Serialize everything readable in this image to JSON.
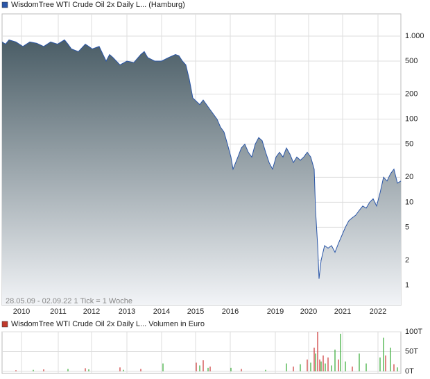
{
  "chart_data": [
    {
      "type": "area",
      "title": "WisdomTree WTI Crude Oil 2x Daily L... (Hamburg)",
      "annotation": "28.05.09 - 02.09.22   1 Tick = 1 Woche",
      "color": "#2a56a8",
      "log_scale": true,
      "grid": true,
      "xlim": [
        0,
        575
      ],
      "xticks": [
        {
          "value": 28,
          "label": "2010"
        },
        {
          "value": 81,
          "label": "2011"
        },
        {
          "value": 129,
          "label": "2012"
        },
        {
          "value": 180,
          "label": "2013"
        },
        {
          "value": 230,
          "label": "2014"
        },
        {
          "value": 279,
          "label": "2015"
        },
        {
          "value": 329,
          "label": "2016"
        },
        {
          "value": 394,
          "label": "2019"
        },
        {
          "value": 442,
          "label": "2020"
        },
        {
          "value": 491,
          "label": "2021"
        },
        {
          "value": 542,
          "label": "2022"
        }
      ],
      "ylim": [
        0.573,
        1849
      ],
      "yticks": [
        1,
        2,
        5,
        10,
        20,
        50,
        100,
        200,
        500,
        {
          "value": 1000,
          "label": "1.000"
        }
      ],
      "x": [
        0,
        5,
        10,
        20,
        30,
        40,
        50,
        60,
        70,
        80,
        90,
        95,
        100,
        110,
        120,
        125,
        130,
        140,
        150,
        155,
        160,
        170,
        180,
        190,
        200,
        205,
        210,
        220,
        230,
        240,
        250,
        255,
        260,
        265,
        270,
        275,
        285,
        290,
        300,
        310,
        315,
        320,
        325,
        330,
        333,
        340,
        345,
        350,
        355,
        360,
        365,
        370,
        375,
        380,
        385,
        390,
        395,
        400,
        405,
        410,
        415,
        420,
        425,
        430,
        435,
        440,
        445,
        450,
        452,
        455,
        457,
        460,
        465,
        470,
        475,
        480,
        485,
        490,
        495,
        500,
        505,
        510,
        515,
        520,
        525,
        530,
        535,
        540,
        545,
        550,
        555,
        560,
        565,
        570,
        575
      ],
      "values": [
        850,
        800,
        900,
        850,
        750,
        850,
        820,
        750,
        850,
        800,
        900,
        800,
        700,
        650,
        800,
        750,
        700,
        750,
        500,
        600,
        550,
        450,
        500,
        480,
        600,
        650,
        550,
        500,
        500,
        550,
        600,
        580,
        500,
        450,
        300,
        180,
        150,
        170,
        130,
        100,
        80,
        70,
        50,
        35,
        25,
        35,
        45,
        50,
        40,
        35,
        50,
        60,
        55,
        40,
        30,
        25,
        35,
        40,
        35,
        45,
        38,
        30,
        35,
        32,
        35,
        40,
        35,
        25,
        8,
        3,
        1.2,
        2,
        3,
        2.8,
        3,
        2.5,
        3.2,
        4,
        5,
        6,
        6.5,
        7,
        8,
        9,
        8.5,
        10,
        11,
        9,
        13,
        20,
        18,
        22,
        25,
        17,
        18
      ]
    },
    {
      "type": "bar",
      "title": "WisdomTree WTI Crude Oil 2x Daily L... Volumen in Euro",
      "color": "#c0392b",
      "xlim": [
        0,
        575
      ],
      "ylim": [
        0,
        100000
      ],
      "yticks": [
        {
          "value": 0,
          "label": "0T"
        },
        {
          "value": 50000,
          "label": "50T"
        },
        {
          "value": 100000,
          "label": "100T"
        }
      ],
      "x": [
        20,
        45,
        60,
        95,
        120,
        125,
        170,
        175,
        200,
        232,
        280,
        285,
        290,
        297,
        300,
        330,
        345,
        380,
        410,
        420,
        430,
        440,
        445,
        450,
        452,
        455,
        458,
        460,
        463,
        466,
        470,
        475,
        480,
        485,
        488,
        495,
        505,
        515,
        525,
        545,
        550,
        553,
        560,
        565,
        570
      ],
      "values": [
        3000,
        4000,
        5000,
        6000,
        8000,
        5000,
        10000,
        4000,
        6000,
        20000,
        22000,
        15000,
        28000,
        9000,
        12000,
        9000,
        6000,
        4000,
        20000,
        12000,
        18000,
        30000,
        22000,
        60000,
        45000,
        100000,
        30000,
        25000,
        40000,
        20000,
        35000,
        15000,
        55000,
        30000,
        95000,
        25000,
        12000,
        45000,
        20000,
        35000,
        85000,
        40000,
        60000,
        18000,
        10000
      ],
      "colors": [
        "#cc3333",
        "#33aa33",
        "#cc3333",
        "#33aa33",
        "#cc3333",
        "#33aa33",
        "#cc3333",
        "#33aa33",
        "#cc3333",
        "#33aa33",
        "#cc3333",
        "#33aa33",
        "#cc3333",
        "#33aa33",
        "#cc3333",
        "#33aa33",
        "#cc3333",
        "#33aa33",
        "#33aa33",
        "#cc3333",
        "#33aa33",
        "#cc3333",
        "#33aa33",
        "#cc3333",
        "#33aa33",
        "#cc3333",
        "#cc3333",
        "#33aa33",
        "#cc3333",
        "#33aa33",
        "#cc3333",
        "#33aa33",
        "#33aa33",
        "#cc3333",
        "#33aa33",
        "#33aa33",
        "#cc3333",
        "#33aa33",
        "#33aa33",
        "#33aa33",
        "#33aa33",
        "#cc3333",
        "#33aa33",
        "#cc3333",
        "#33aa33"
      ]
    }
  ]
}
